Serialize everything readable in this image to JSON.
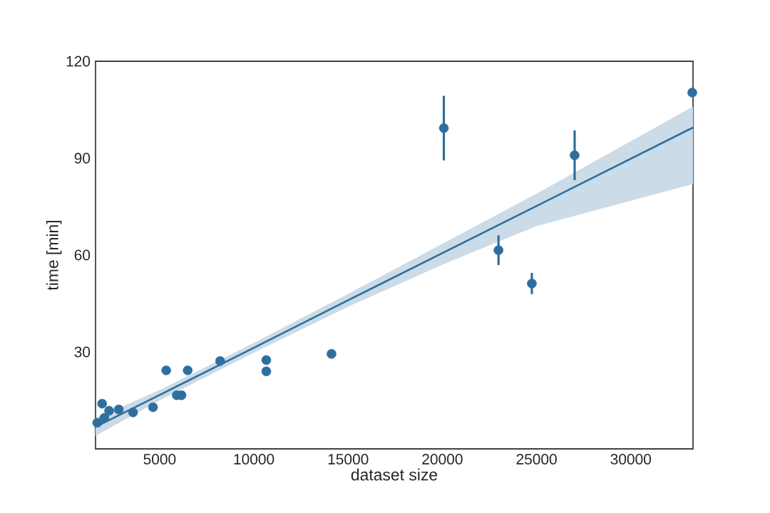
{
  "chart_data": {
    "type": "scatter",
    "xlabel": "dataset size",
    "ylabel": "time [min]",
    "xlim": [
      1600,
      33300
    ],
    "ylim": [
      0,
      120
    ],
    "xticks": [
      5000,
      10000,
      15000,
      20000,
      25000,
      30000
    ],
    "yticks": [
      30,
      60,
      90,
      120
    ],
    "series": [
      {
        "color": "#2e6f9e",
        "x": [
          1600,
          5000,
          10000,
          15000,
          20000,
          25000,
          33300
        ],
        "values": [
          6.8,
          16.7,
          31.3,
          46.0,
          60.6,
          75.2,
          99.5
        ],
        "type": "line",
        "lower": [
          4,
          15,
          29.8,
          44,
          57,
          69,
          82
        ],
        "upper": [
          9.5,
          18.2,
          32.8,
          48,
          63.5,
          79,
          106
        ],
        "marker": "none"
      },
      {
        "marker": "circle",
        "color": "#2e6f9e",
        "x": [
          1690,
          1950,
          2070,
          2320,
          2830,
          3590,
          4650,
          5350,
          5910,
          6160,
          6490,
          8210,
          10660,
          10660,
          14120,
          20080,
          22980,
          24750,
          27020,
          33260
        ],
        "values": [
          8.1,
          14,
          9.6,
          11.8,
          12.2,
          11.3,
          12.9,
          24.3,
          16.6,
          16.6,
          24.3,
          27.2,
          27.5,
          24.0,
          29.4,
          99.3,
          61.5,
          51.2,
          90.9,
          110.3
        ],
        "errors": [
          null,
          null,
          null,
          null,
          null,
          null,
          null,
          null,
          null,
          null,
          null,
          null,
          null,
          null,
          null,
          10,
          4.6,
          3.3,
          7.7,
          null
        ]
      }
    ]
  }
}
